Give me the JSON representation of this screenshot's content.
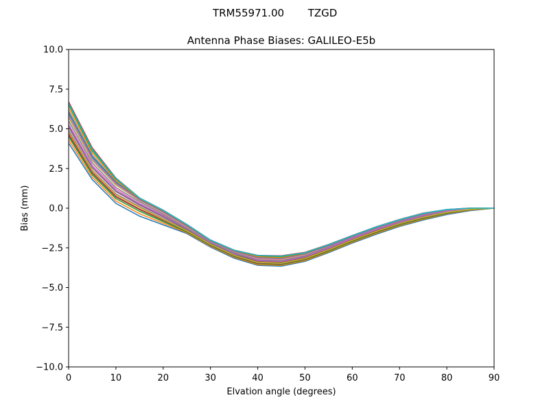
{
  "figure": {
    "suptitle_antenna": "TRM55971.00",
    "suptitle_radome": "TZGD"
  },
  "chart_data": {
    "type": "line",
    "title": "Antenna Phase Biases: GALILEO-E5b",
    "xlabel": "Elvation angle (degrees)",
    "ylabel": "Bias (mm)",
    "xlim": [
      0,
      90
    ],
    "ylim": [
      -10,
      10
    ],
    "grid": false,
    "legend": "none",
    "x": [
      0,
      5,
      10,
      15,
      20,
      25,
      30,
      35,
      40,
      45,
      50,
      55,
      60,
      65,
      70,
      75,
      80,
      85,
      90
    ],
    "x_ticks": [
      "0",
      "10",
      "20",
      "30",
      "40",
      "50",
      "60",
      "70",
      "80",
      "90"
    ],
    "y_ticks": [
      "−10.0",
      "−7.5",
      "−5.0",
      "−2.5",
      "0.0",
      "2.5",
      "5.0",
      "7.5",
      "10.0"
    ],
    "series_colors": [
      "#1f77b4",
      "#ff7f0e",
      "#2ca02c",
      "#d62728",
      "#9467bd",
      "#8c564b",
      "#e377c2",
      "#7f7f7f",
      "#bcbd22",
      "#17becf"
    ],
    "series": [
      {
        "values": [
          4.1,
          1.8,
          0.3,
          -0.5,
          -1.05,
          -1.6,
          -2.45,
          -3.15,
          -3.6,
          -3.65,
          -3.35,
          -2.8,
          -2.2,
          -1.65,
          -1.15,
          -0.75,
          -0.4,
          -0.15,
          0.0
        ]
      },
      {
        "values": [
          4.3,
          1.95,
          0.45,
          -0.35,
          -0.95,
          -1.55,
          -2.4,
          -3.1,
          -3.55,
          -3.6,
          -3.3,
          -2.75,
          -2.15,
          -1.6,
          -1.1,
          -0.7,
          -0.35,
          -0.12,
          0.0
        ]
      },
      {
        "values": [
          4.5,
          2.1,
          0.6,
          -0.2,
          -0.85,
          -1.5,
          -2.35,
          -3.05,
          -3.5,
          -3.55,
          -3.25,
          -2.7,
          -2.1,
          -1.55,
          -1.05,
          -0.65,
          -0.32,
          -0.1,
          0.0
        ]
      },
      {
        "values": [
          4.7,
          2.25,
          0.75,
          -0.05,
          -0.75,
          -1.45,
          -2.3,
          -3.0,
          -3.45,
          -3.5,
          -3.2,
          -2.65,
          -2.05,
          -1.5,
          -1.0,
          -0.6,
          -0.28,
          -0.08,
          0.0
        ]
      },
      {
        "values": [
          4.9,
          2.4,
          0.9,
          0.1,
          -0.65,
          -1.4,
          -2.25,
          -2.95,
          -3.4,
          -3.45,
          -3.15,
          -2.6,
          -2.0,
          -1.45,
          -0.95,
          -0.55,
          -0.25,
          -0.06,
          0.0
        ]
      },
      {
        "values": [
          5.1,
          2.55,
          1.05,
          0.2,
          -0.55,
          -1.35,
          -2.2,
          -2.9,
          -3.35,
          -3.4,
          -3.1,
          -2.55,
          -1.95,
          -1.4,
          -0.9,
          -0.5,
          -0.22,
          -0.05,
          0.0
        ]
      },
      {
        "values": [
          5.3,
          2.7,
          1.2,
          0.3,
          -0.45,
          -1.3,
          -2.15,
          -2.85,
          -3.3,
          -3.35,
          -3.05,
          -2.5,
          -1.9,
          -1.35,
          -0.87,
          -0.47,
          -0.19,
          -0.04,
          0.0
        ]
      },
      {
        "values": [
          5.5,
          2.85,
          1.3,
          0.4,
          -0.38,
          -1.25,
          -2.12,
          -2.8,
          -3.25,
          -3.3,
          -3.0,
          -2.45,
          -1.85,
          -1.3,
          -0.84,
          -0.44,
          -0.16,
          -0.03,
          0.0
        ]
      },
      {
        "values": [
          5.7,
          3.0,
          1.45,
          0.48,
          -0.3,
          -1.2,
          -2.1,
          -2.75,
          -3.2,
          -3.25,
          -2.95,
          -2.4,
          -1.82,
          -1.27,
          -0.81,
          -0.41,
          -0.14,
          -0.02,
          0.0
        ]
      },
      {
        "values": [
          5.9,
          3.15,
          1.55,
          0.52,
          -0.25,
          -1.15,
          -2.08,
          -2.72,
          -3.15,
          -3.2,
          -2.9,
          -2.37,
          -1.8,
          -1.25,
          -0.79,
          -0.39,
          -0.12,
          -0.01,
          0.0
        ]
      },
      {
        "values": [
          6.1,
          3.3,
          1.65,
          0.56,
          -0.2,
          -1.1,
          -2.06,
          -2.7,
          -3.1,
          -3.15,
          -2.87,
          -2.35,
          -1.78,
          -1.23,
          -0.77,
          -0.37,
          -0.11,
          0.0,
          0.0
        ]
      },
      {
        "values": [
          6.3,
          3.45,
          1.75,
          0.6,
          -0.17,
          -1.07,
          -2.04,
          -2.68,
          -3.05,
          -3.1,
          -2.84,
          -2.32,
          -1.76,
          -1.21,
          -0.75,
          -0.35,
          -0.1,
          0.0,
          0.0
        ]
      },
      {
        "values": [
          6.5,
          3.6,
          1.83,
          0.63,
          -0.14,
          -1.04,
          -2.02,
          -2.66,
          -3.0,
          -3.05,
          -2.81,
          -2.3,
          -1.74,
          -1.19,
          -0.73,
          -0.33,
          -0.09,
          0.0,
          0.0
        ]
      },
      {
        "values": [
          6.7,
          3.8,
          1.9,
          0.65,
          -0.12,
          -1.02,
          -2.0,
          -2.64,
          -2.97,
          -3.0,
          -2.78,
          -2.28,
          -1.72,
          -1.17,
          -0.71,
          -0.31,
          -0.08,
          0.01,
          0.0
        ]
      },
      {
        "values": [
          5.2,
          2.6,
          1.1,
          0.25,
          -0.5,
          -1.32,
          -2.18,
          -2.88,
          -3.28,
          -3.32,
          -3.02,
          -2.46,
          -1.86,
          -1.31,
          -0.85,
          -0.45,
          -0.17,
          -0.03,
          0.0
        ]
      },
      {
        "values": [
          4.6,
          2.2,
          0.7,
          -0.1,
          -0.78,
          -1.46,
          -2.32,
          -3.02,
          -3.48,
          -3.52,
          -3.22,
          -2.66,
          -2.06,
          -1.51,
          -1.01,
          -0.61,
          -0.29,
          -0.09,
          0.0
        ]
      },
      {
        "values": [
          5.8,
          3.05,
          1.5,
          0.5,
          -0.28,
          -1.18,
          -2.09,
          -2.74,
          -3.18,
          -3.22,
          -2.92,
          -2.38,
          -1.81,
          -1.26,
          -0.8,
          -0.4,
          -0.13,
          -0.02,
          0.0
        ]
      },
      {
        "values": [
          6.0,
          3.2,
          1.6,
          0.54,
          -0.22,
          -1.12,
          -2.07,
          -2.71,
          -3.12,
          -3.17,
          -2.88,
          -2.36,
          -1.79,
          -1.24,
          -0.78,
          -0.38,
          -0.11,
          0.0,
          0.0
        ]
      },
      {
        "values": [
          4.8,
          2.35,
          0.85,
          0.05,
          -0.7,
          -1.42,
          -2.27,
          -2.97,
          -3.42,
          -3.47,
          -3.17,
          -2.62,
          -2.02,
          -1.47,
          -0.97,
          -0.57,
          -0.26,
          -0.07,
          0.0
        ]
      },
      {
        "values": [
          6.6,
          3.7,
          1.87,
          0.64,
          -0.13,
          -1.03,
          -2.01,
          -2.65,
          -2.98,
          -3.02,
          -2.8,
          -2.29,
          -1.73,
          -1.18,
          -0.72,
          -0.32,
          -0.08,
          0.0,
          0.0
        ]
      }
    ]
  }
}
